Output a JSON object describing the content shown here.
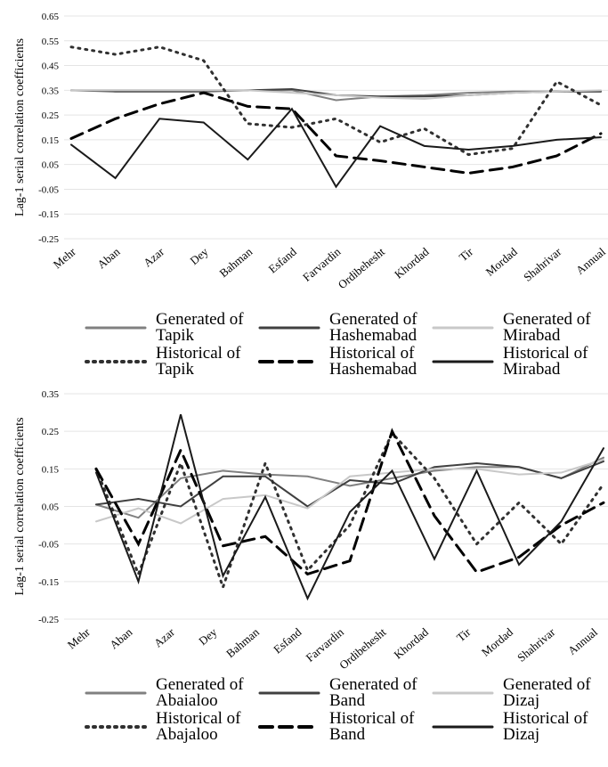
{
  "chart_data": [
    {
      "type": "line",
      "y_label": "Lag-1 serial correlation coefficients",
      "categories": [
        "Mehr",
        "Aban",
        "Azar",
        "Dey",
        "Bahman",
        "Esfand",
        "Farvardin",
        "Ordibehesht",
        "Khordad",
        "Tir",
        "Mordad",
        "Shahrivar",
        "Annual"
      ],
      "ylim": [
        -0.25,
        0.65
      ],
      "yticks": [
        -0.25,
        -0.15,
        -0.05,
        0.05,
        0.15,
        0.25,
        0.35,
        0.45,
        0.55,
        0.65
      ],
      "grid": true,
      "series": [
        {
          "name": "Generated of Tapik",
          "color": "#808080",
          "dash": "solid",
          "values": [
            0.35,
            0.35,
            0.35,
            0.35,
            0.35,
            0.35,
            0.31,
            0.325,
            0.33,
            0.34,
            0.345,
            0.345,
            0.345
          ]
        },
        {
          "name": "Generated of Hashemabad",
          "color": "#404040",
          "dash": "solid",
          "values": [
            0.35,
            0.345,
            0.345,
            0.345,
            0.35,
            0.355,
            0.33,
            0.325,
            0.325,
            0.33,
            0.34,
            0.345,
            0.345
          ]
        },
        {
          "name": "Generated of Mirabad",
          "color": "#c8c8c8",
          "dash": "solid",
          "values": [
            0.35,
            0.35,
            0.35,
            0.35,
            0.35,
            0.34,
            0.33,
            0.32,
            0.315,
            0.33,
            0.34,
            0.345,
            0.35
          ]
        },
        {
          "name": "Historical of Tapik",
          "color": "#303030",
          "dash": "dotted",
          "values": [
            0.525,
            0.495,
            0.525,
            0.47,
            0.215,
            0.2,
            0.235,
            0.14,
            0.195,
            0.09,
            0.115,
            0.385,
            0.29
          ]
        },
        {
          "name": "Historical of Hashemabad",
          "color": "#000000",
          "dash": "dashed",
          "values": [
            0.155,
            0.235,
            0.295,
            0.34,
            0.285,
            0.275,
            0.085,
            0.065,
            0.04,
            0.015,
            0.04,
            0.085,
            0.175
          ]
        },
        {
          "name": "Historical of Mirabad",
          "color": "#1a1a1a",
          "dash": "solid",
          "values": [
            0.13,
            -0.005,
            0.235,
            0.22,
            0.07,
            0.275,
            -0.04,
            0.205,
            0.125,
            0.11,
            0.125,
            0.15,
            0.16
          ]
        }
      ]
    },
    {
      "type": "line",
      "y_label": "Lag-1 serial correlation coefficients",
      "categories": [
        "Mehr",
        "Aban",
        "Azar",
        "Dey",
        "Bahman",
        "Esfand",
        "Farvardin",
        "Ordibehesht",
        "Khordad",
        "Tir",
        "Mordad",
        "Shahrivar",
        "Annual"
      ],
      "ylim": [
        -0.25,
        0.35
      ],
      "yticks": [
        -0.25,
        -0.15,
        -0.05,
        0.05,
        0.15,
        0.25,
        0.35
      ],
      "grid": true,
      "series": [
        {
          "name": "Generated of Abaialoo",
          "color": "#808080",
          "dash": "solid",
          "values": [
            0.055,
            0.02,
            0.125,
            0.145,
            0.135,
            0.13,
            0.105,
            0.125,
            0.145,
            0.155,
            0.155,
            0.125,
            0.18
          ]
        },
        {
          "name": "Generated of Band",
          "color": "#404040",
          "dash": "solid",
          "values": [
            0.055,
            0.07,
            0.05,
            0.13,
            0.13,
            0.05,
            0.12,
            0.11,
            0.155,
            0.165,
            0.155,
            0.125,
            0.17
          ]
        },
        {
          "name": "Generated of Dizaj",
          "color": "#c8c8c8",
          "dash": "solid",
          "values": [
            0.01,
            0.045,
            0.005,
            0.07,
            0.08,
            0.045,
            0.13,
            0.14,
            0.15,
            0.15,
            0.135,
            0.14,
            0.175
          ]
        },
        {
          "name": "Historical of Abajaloo",
          "color": "#303030",
          "dash": "dotted",
          "values": [
            0.15,
            -0.13,
            0.165,
            -0.165,
            0.165,
            -0.12,
            0.0,
            0.245,
            0.125,
            -0.05,
            0.06,
            -0.05,
            0.11
          ]
        },
        {
          "name": "Historical of Band",
          "color": "#000000",
          "dash": "dashed",
          "values": [
            0.15,
            -0.05,
            0.2,
            -0.055,
            -0.03,
            -0.13,
            -0.095,
            0.25,
            0.025,
            -0.125,
            -0.085,
            0.0,
            0.06
          ]
        },
        {
          "name": "Historical of Dizaj",
          "color": "#1a1a1a",
          "dash": "solid",
          "values": [
            0.14,
            -0.15,
            0.295,
            -0.135,
            0.075,
            -0.195,
            0.035,
            0.145,
            -0.09,
            0.145,
            -0.105,
            0.01,
            0.205
          ]
        }
      ]
    }
  ]
}
